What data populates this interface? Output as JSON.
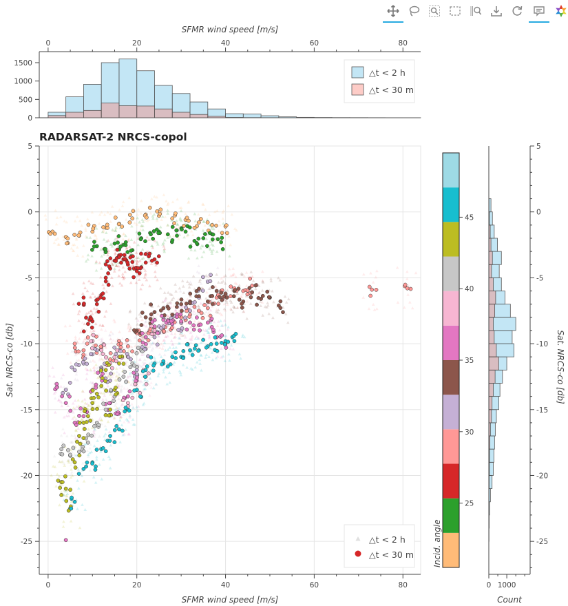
{
  "toolbar": {
    "tools": [
      {
        "name": "pan-tool",
        "icon": "move-icon",
        "active": true
      },
      {
        "name": "lasso-select-tool",
        "icon": "lasso-icon",
        "active": false
      },
      {
        "name": "zoom-box-tool",
        "icon": "zoom-box-icon",
        "active": false
      },
      {
        "name": "box-select-tool",
        "icon": "box-select-icon",
        "active": false
      },
      {
        "name": "wheel-zoom-tool",
        "icon": "wheel-zoom-icon",
        "active": false
      },
      {
        "name": "save-tool",
        "icon": "download-icon",
        "active": false
      },
      {
        "name": "reset-tool",
        "icon": "reset-icon",
        "active": false
      },
      {
        "name": "hover-tool",
        "icon": "hover-icon",
        "active": true
      },
      {
        "name": "bokeh-logo",
        "icon": "bokeh-logo-icon",
        "active": false
      }
    ]
  },
  "chart_data": [
    {
      "id": "top-histogram",
      "type": "bar",
      "xlabel": "SFMR wind speed [m/s]",
      "xlim": [
        -2,
        84
      ],
      "ylim": [
        0,
        1800
      ],
      "xticks": [
        0,
        20,
        40,
        60,
        80
      ],
      "yticks": [
        0,
        500,
        1000,
        1500
      ],
      "bin_edges": [
        0,
        4,
        8,
        12,
        16,
        20,
        24,
        28,
        32,
        36,
        40,
        44,
        48,
        52,
        56,
        60,
        64,
        68,
        72,
        76,
        80,
        84
      ],
      "series": [
        {
          "name": "△t < 2 h",
          "color": "#87ceeb",
          "values": [
            150,
            570,
            910,
            1500,
            1600,
            1280,
            880,
            660,
            430,
            240,
            110,
            100,
            55,
            25,
            12,
            8,
            5,
            4,
            3,
            2,
            1
          ]
        },
        {
          "name": "△t < 30 m",
          "color": "#fa8072",
          "values": [
            60,
            150,
            200,
            400,
            330,
            320,
            240,
            150,
            90,
            40,
            10,
            5,
            3,
            2,
            1,
            0,
            0,
            0,
            0,
            0,
            0
          ]
        }
      ],
      "legend": {
        "position": "top-right",
        "entries": [
          "△t < 2 h",
          "△t < 30 m"
        ]
      }
    },
    {
      "id": "main-scatter",
      "type": "scatter",
      "title": "RADARSAT-2 NRCS-copol",
      "xlabel": "SFMR wind speed [m/s]",
      "ylabel": "Sat. NRCS-co [db]",
      "xlim": [
        -2,
        84
      ],
      "ylim": [
        -27.5,
        5
      ],
      "xticks": [
        0,
        20,
        40,
        60,
        80
      ],
      "yticks": [
        -25,
        -20,
        -15,
        -10,
        -5,
        0,
        5
      ],
      "grid": true,
      "legend": {
        "position": "bottom-right",
        "entries": [
          "△t < 2 h",
          "△t < 30 m"
        ]
      },
      "clusters": [
        {
          "angle": 22,
          "color": "#ffbb78",
          "x": [
            1,
            4,
            7,
            10,
            13,
            16,
            19,
            22,
            25,
            28,
            31,
            34,
            37,
            40
          ],
          "y": [
            -1.5,
            -1.9,
            -1.8,
            -1.5,
            -1.2,
            -0.9,
            -0.5,
            -0.2,
            -0.3,
            -0.5,
            -0.6,
            -0.8,
            -1.0,
            -1.1
          ]
        },
        {
          "angle": 24,
          "color": "#2ca02c",
          "x": [
            11,
            13,
            15,
            17,
            19,
            21,
            23,
            25,
            27,
            29,
            31,
            33,
            35,
            37,
            39
          ],
          "y": [
            -2.6,
            -3.0,
            -2.4,
            -2.5,
            -2.9,
            -2.0,
            -1.6,
            -1.5,
            -1.7,
            -1.4,
            -1.5,
            -2.2,
            -2.0,
            -1.7,
            -2.3
          ]
        },
        {
          "angle": 27,
          "color": "#d62728",
          "x": [
            8,
            9,
            10,
            11,
            12,
            13,
            14,
            15,
            16,
            17,
            18,
            19,
            20,
            21,
            22,
            24
          ],
          "y": [
            -6.5,
            -8.5,
            -8.3,
            -7.0,
            -6.3,
            -5.0,
            -4.3,
            -3.7,
            -3.3,
            -3.6,
            -4.0,
            -3.8,
            -4.5,
            -4.2,
            -3.2,
            -3.6
          ]
        },
        {
          "angle": 29,
          "color": "#ff9896",
          "x": [
            6,
            8,
            10,
            12,
            14,
            16,
            18,
            20,
            22,
            24,
            26,
            28,
            30,
            32,
            34,
            36,
            38,
            40,
            42,
            44,
            46,
            73,
            81
          ],
          "y": [
            -10.0,
            -10.5,
            -9.8,
            -10.3,
            -11.2,
            -9.8,
            -10.2,
            -9.2,
            -9.5,
            -8.8,
            -9.0,
            -8.5,
            -8.0,
            -7.8,
            -7.5,
            -7.3,
            -6.5,
            -6.3,
            -5.8,
            -6.0,
            -5.6,
            -5.9,
            -5.8
          ]
        },
        {
          "angle": 31,
          "color": "#c5b0d5",
          "x": [
            4,
            6,
            8,
            10,
            12,
            14,
            16,
            18,
            20,
            22,
            24,
            26,
            28,
            30,
            32,
            34,
            36
          ],
          "y": [
            -13.5,
            -12.0,
            -11.5,
            -10.8,
            -11.8,
            -12.8,
            -10.5,
            -11.0,
            -12.0,
            -10.4,
            -9.5,
            -8.7,
            -8.5,
            -9.0,
            -7.5,
            -6.5,
            -5.3
          ]
        },
        {
          "angle": 34,
          "color": "#8c564b",
          "x": [
            20,
            22,
            24,
            26,
            28,
            30,
            32,
            34,
            36,
            38,
            40,
            42,
            44,
            46,
            48,
            50,
            52
          ],
          "y": [
            -9.0,
            -8.0,
            -7.6,
            -7.3,
            -7.8,
            -7.0,
            -6.8,
            -6.4,
            -6.8,
            -6.0,
            -6.2,
            -6.0,
            -6.8,
            -6.1,
            -6.6,
            -6.5,
            -7.1
          ]
        },
        {
          "angle": 36,
          "color": "#e377c2",
          "x": [
            2,
            4,
            6,
            8,
            10,
            12,
            14,
            16,
            18,
            20,
            22,
            24,
            26,
            28,
            30,
            32,
            34,
            36,
            38,
            40
          ],
          "y": [
            -13.3,
            -14.5,
            -16.0,
            -15.5,
            -13.5,
            -12.5,
            -14.5,
            -15.3,
            -14.0,
            -12.8,
            -9.5,
            -8.7,
            -8.2,
            -8.5,
            -8.3,
            -8.4,
            -8.6,
            -8.4,
            -9.5,
            -9.9
          ]
        },
        {
          "angle": 38,
          "color": "#f7b6d2",
          "x": [
            10,
            12,
            14,
            16,
            18,
            20,
            22,
            24
          ],
          "y": [
            -9.8,
            -10.5,
            -11.5,
            -11.0,
            -14.5,
            -13.5,
            -12.5,
            -9.0
          ]
        },
        {
          "angle": 40,
          "color": "#c7c7c7",
          "x": [
            3,
            5,
            7,
            9,
            11,
            13,
            15,
            17,
            19,
            21
          ],
          "y": [
            -18.0,
            -18.5,
            -18.2,
            -17.5,
            -16.0,
            -15.0,
            -14.0,
            -12.5,
            -11.5,
            -10.5
          ]
        },
        {
          "angle": 44,
          "color": "#bcbd22",
          "x": [
            3,
            4,
            5,
            6,
            7,
            8,
            9,
            10,
            11,
            12,
            13,
            14,
            15,
            16
          ],
          "y": [
            -20.5,
            -21.0,
            -22.5,
            -19.0,
            -17.0,
            -16.0,
            -15.5,
            -14.5,
            -13.8,
            -13.2,
            -12.0,
            -15.0,
            -13.5,
            -11.5
          ]
        },
        {
          "angle": 47,
          "color": "#17becf",
          "x": [
            6,
            8,
            10,
            12,
            14,
            16,
            18,
            20,
            22,
            24,
            26,
            28,
            30,
            32,
            34,
            36,
            38,
            40,
            42
          ],
          "y": [
            -22.0,
            -19.5,
            -19.0,
            -18.0,
            -17.0,
            -16.5,
            -15.0,
            -13.5,
            -12.0,
            -11.5,
            -11.5,
            -11.0,
            -11.0,
            -10.5,
            -10.5,
            -10.2,
            -10.0,
            -9.8,
            -9.8
          ]
        }
      ],
      "outliers": [
        {
          "x": 4,
          "y": -24.9,
          "color": "#e377c2"
        }
      ]
    },
    {
      "id": "colorbar",
      "type": "heatmap",
      "label": "Incid. angle",
      "range": [
        20.5,
        49.5
      ],
      "ticks": [
        25,
        30,
        35,
        40,
        45
      ],
      "colors": [
        "#ffbb78",
        "#2ca02c",
        "#d62728",
        "#ff9896",
        "#c5b0d5",
        "#8c564b",
        "#e377c2",
        "#f7b6d2",
        "#c7c7c7",
        "#bcbd22",
        "#17becf",
        "#9edae5"
      ]
    },
    {
      "id": "right-histogram",
      "type": "bar",
      "orientation": "horizontal",
      "xlabel": "Count",
      "ylabel": "Sat. NRCS-co [db]",
      "ylim": [
        -27.5,
        5
      ],
      "yticks": [
        -25,
        -20,
        -15,
        -10,
        -5,
        0,
        5
      ],
      "xticks": [
        0,
        1000
      ],
      "xlim": [
        0,
        2300
      ],
      "bin_edges": [
        -26,
        -25,
        -24,
        -23,
        -22,
        -21,
        -20,
        -19,
        -18,
        -17,
        -16,
        -15,
        -14,
        -13,
        -12,
        -11,
        -10,
        -9,
        -8,
        -7,
        -6,
        -5,
        -4,
        -3,
        -2,
        -1,
        0,
        1
      ],
      "series": [
        {
          "name": "△t < 2 h",
          "color": "#87ceeb",
          "values": [
            3,
            10,
            20,
            40,
            90,
            180,
            250,
            280,
            320,
            360,
            420,
            560,
            620,
            760,
            1000,
            1400,
            1300,
            1500,
            1200,
            900,
            700,
            580,
            700,
            480,
            300,
            200,
            120
          ]
        },
        {
          "name": "△t < 30 m",
          "color": "#fa8072",
          "values": [
            0,
            0,
            0,
            5,
            10,
            20,
            30,
            40,
            60,
            90,
            150,
            180,
            250,
            350,
            550,
            420,
            300,
            250,
            330,
            380,
            250,
            150,
            200,
            120,
            80,
            30,
            10
          ]
        }
      ]
    }
  ]
}
